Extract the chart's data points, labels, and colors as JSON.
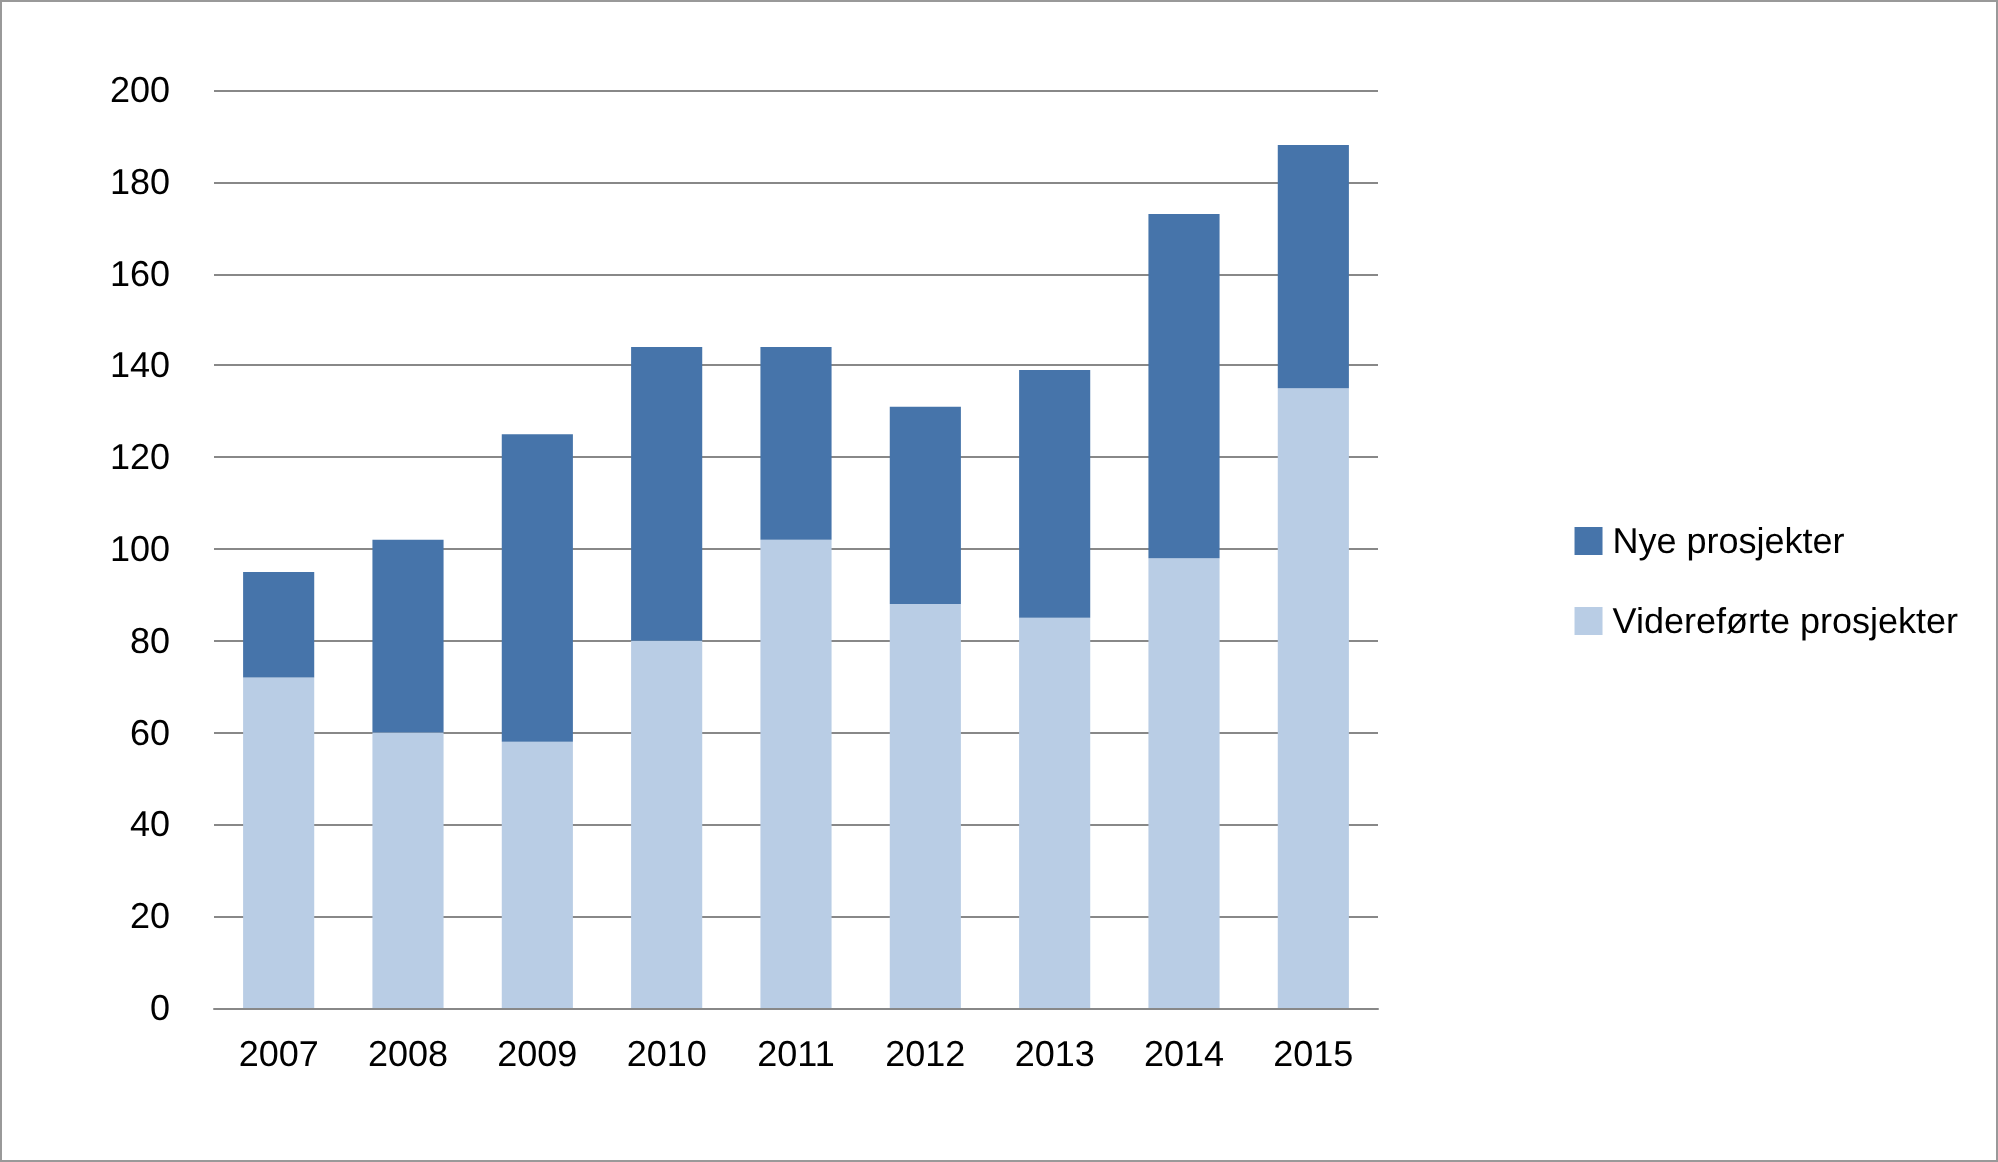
{
  "chart_data": {
    "type": "bar",
    "stacked": true,
    "categories": [
      "2007",
      "2008",
      "2009",
      "2010",
      "2011",
      "2012",
      "2013",
      "2014",
      "2015"
    ],
    "series": [
      {
        "name": "Videreførte prosjekter",
        "color": "#b9cde5",
        "values": [
          72,
          60,
          58,
          80,
          102,
          88,
          85,
          98,
          135
        ]
      },
      {
        "name": "Nye prosjekter",
        "color": "#4674aa",
        "values": [
          23,
          42,
          67,
          64,
          42,
          43,
          54,
          75,
          53
        ]
      }
    ],
    "ylim": [
      0,
      200
    ],
    "yticks": [
      0,
      20,
      40,
      60,
      80,
      100,
      120,
      140,
      160,
      180,
      200
    ],
    "grid": "y",
    "legend": "right"
  }
}
